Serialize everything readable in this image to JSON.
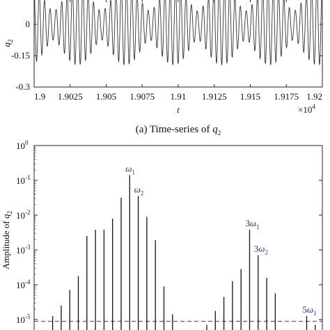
{
  "chart_data": [
    {
      "type": "line",
      "caption": {
        "prefix": "(a) Time-series of ",
        "var": "q",
        "sub": "2"
      },
      "xlabel": "t",
      "ylabel": {
        "var": "q",
        "sub": "2"
      },
      "xlim": [
        19000,
        19200
      ],
      "ylim": [
        -0.3,
        0.12
      ],
      "x_ticks": [
        19000,
        19025,
        19050,
        19075,
        19100,
        19125,
        19150,
        19175,
        19200
      ],
      "x_tick_labels": [
        "1.9",
        "1.9025",
        "1.905",
        "1.9075",
        "1.91",
        "1.9125",
        "1.915",
        "1.9175",
        "1.92"
      ],
      "x_multiplier": {
        "base": "×10",
        "exp": "4"
      },
      "y_ticks": [
        0,
        -0.15,
        -0.3
      ],
      "y_tick_labels": [
        "0",
        "-0.15",
        "-0.3"
      ],
      "series": [
        {
          "color": "#333333",
          "signal": {
            "offset": -0.005,
            "amplitude1": 0.13,
            "omega1_cycles": 53,
            "amplitude2": 0.06,
            "omega2_cycles": 59,
            "sampled_from_t": 19000,
            "sampled_to_t": 19200
          }
        }
      ]
    },
    {
      "type": "bar",
      "scale": "log",
      "ylabel": {
        "prefix": "Amplitude of ",
        "var": "q",
        "sub": "2"
      },
      "ylim_exp": [
        -5.6,
        0
      ],
      "y_ticks_exp": [
        0,
        -1,
        -2,
        -3,
        -4,
        -5
      ],
      "y_tick_labels": [
        {
          "base": "10",
          "exp": "0"
        },
        {
          "base": "10",
          "exp": "-1"
        },
        {
          "base": "10",
          "exp": "-2"
        },
        {
          "base": "10",
          "exp": "-3"
        },
        {
          "base": "10",
          "exp": "-4"
        },
        {
          "base": "10",
          "exp": "-5"
        }
      ],
      "threshold": {
        "value_exp": -5.05,
        "color": "#c0392b"
      },
      "x_range": [
        0,
        100
      ],
      "spikes": [
        {
          "x": 2,
          "exp": -5.3
        },
        {
          "x": 6,
          "exp": -4.9
        },
        {
          "x": 9,
          "exp": -4.6
        },
        {
          "x": 12,
          "exp": -4.15
        },
        {
          "x": 15,
          "exp": -3.75
        },
        {
          "x": 18,
          "exp": -2.6
        },
        {
          "x": 21,
          "exp": -2.42
        },
        {
          "x": 24,
          "exp": -2.42
        },
        {
          "x": 27,
          "exp": -2.1
        },
        {
          "x": 30,
          "exp": -1.5
        },
        {
          "x": 33,
          "exp": -0.85
        },
        {
          "x": 36,
          "exp": -1.45
        },
        {
          "x": 39,
          "exp": -2.05
        },
        {
          "x": 42,
          "exp": -2.72
        },
        {
          "x": 45,
          "exp": -4.05
        },
        {
          "x": 48,
          "exp": -4.85
        },
        {
          "x": 54,
          "exp": -5.3
        },
        {
          "x": 57,
          "exp": -5.4
        },
        {
          "x": 60,
          "exp": -5.15
        },
        {
          "x": 63,
          "exp": -4.75
        },
        {
          "x": 66,
          "exp": -4.35
        },
        {
          "x": 69,
          "exp": -3.9
        },
        {
          "x": 72,
          "exp": -3.55
        },
        {
          "x": 75,
          "exp": -2.42
        },
        {
          "x": 78,
          "exp": -3.15
        },
        {
          "x": 81,
          "exp": -3.8
        },
        {
          "x": 84,
          "exp": -4.25
        },
        {
          "x": 92,
          "exp": -5.4
        },
        {
          "x": 95,
          "exp": -4.9
        },
        {
          "x": 98,
          "exp": -5.15
        }
      ],
      "annotations": [
        {
          "label": "ω",
          "sub": "1",
          "prefix": "",
          "x": 33,
          "exp": -0.85
        },
        {
          "label": "ω",
          "sub": "2",
          "prefix": "",
          "x": 36,
          "exp": -1.45
        },
        {
          "label": "ω",
          "sub": "1",
          "prefix": "3",
          "x": 75,
          "exp": -2.42
        },
        {
          "label": "ω",
          "sub": "2",
          "prefix": "3",
          "x": 78,
          "exp": -3.15
        },
        {
          "label": "ω",
          "sub": "1",
          "prefix": "5",
          "x": 95,
          "exp": -4.9
        }
      ]
    }
  ]
}
